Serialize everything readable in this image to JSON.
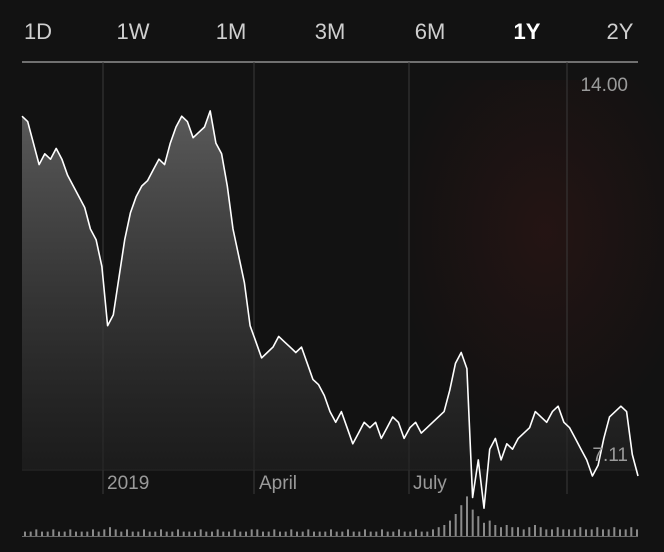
{
  "tabs": [
    {
      "label": "1D"
    },
    {
      "label": "1W"
    },
    {
      "label": "1M"
    },
    {
      "label": "3M"
    },
    {
      "label": "6M"
    },
    {
      "label": "1Y"
    },
    {
      "label": "2Y"
    }
  ],
  "selected_tab": "1Y",
  "chart_data": {
    "type": "area",
    "ylim": [
      7.11,
      14.0
    ],
    "y_labels": [
      "14.00",
      "7.11"
    ],
    "x_tick_labels": [
      "2019",
      "April",
      "July"
    ],
    "grid": true,
    "line_color": "#ffffff",
    "fill_color": "#5a5a5a",
    "values": [
      13.4,
      13.3,
      12.9,
      12.5,
      12.7,
      12.6,
      12.8,
      12.6,
      12.3,
      12.1,
      11.9,
      11.7,
      11.3,
      11.1,
      10.6,
      9.5,
      9.7,
      10.4,
      11.1,
      11.6,
      11.9,
      12.1,
      12.2,
      12.4,
      12.6,
      12.5,
      12.9,
      13.2,
      13.4,
      13.3,
      13.0,
      13.1,
      13.2,
      13.5,
      12.9,
      12.7,
      12.1,
      11.3,
      10.8,
      10.3,
      9.5,
      9.2,
      8.9,
      9.0,
      9.1,
      9.3,
      9.2,
      9.1,
      9.0,
      9.1,
      8.8,
      8.5,
      8.4,
      8.2,
      7.9,
      7.7,
      7.9,
      7.6,
      7.3,
      7.5,
      7.7,
      7.6,
      7.7,
      7.4,
      7.6,
      7.8,
      7.7,
      7.4,
      7.6,
      7.7,
      7.5,
      7.6,
      7.7,
      7.8,
      7.9,
      8.3,
      8.8,
      9.0,
      8.7,
      6.3,
      7.0,
      6.1,
      7.2,
      7.4,
      7.0,
      7.3,
      7.2,
      7.4,
      7.5,
      7.6,
      7.9,
      7.8,
      7.7,
      7.9,
      8.0,
      7.7,
      7.6,
      7.4,
      7.2,
      7.0,
      6.7,
      6.9,
      7.4,
      7.8,
      7.9,
      8.0,
      7.9,
      7.1,
      6.7
    ],
    "volume": [
      2,
      2,
      3,
      2,
      2,
      3,
      2,
      2,
      3,
      2,
      2,
      2,
      3,
      2,
      3,
      4,
      3,
      2,
      3,
      2,
      2,
      3,
      2,
      2,
      3,
      2,
      2,
      3,
      2,
      2,
      2,
      3,
      2,
      2,
      3,
      2,
      2,
      3,
      2,
      2,
      3,
      3,
      2,
      2,
      3,
      2,
      2,
      3,
      2,
      2,
      3,
      2,
      2,
      2,
      3,
      2,
      2,
      3,
      2,
      2,
      3,
      2,
      2,
      3,
      2,
      2,
      3,
      2,
      2,
      3,
      2,
      2,
      3,
      4,
      5,
      7,
      10,
      14,
      18,
      12,
      9,
      6,
      7,
      5,
      4,
      5,
      4,
      4,
      3,
      4,
      5,
      4,
      3,
      3,
      4,
      3,
      3,
      3,
      4,
      3,
      3,
      4,
      3,
      3,
      4,
      3,
      3,
      4,
      3
    ]
  }
}
